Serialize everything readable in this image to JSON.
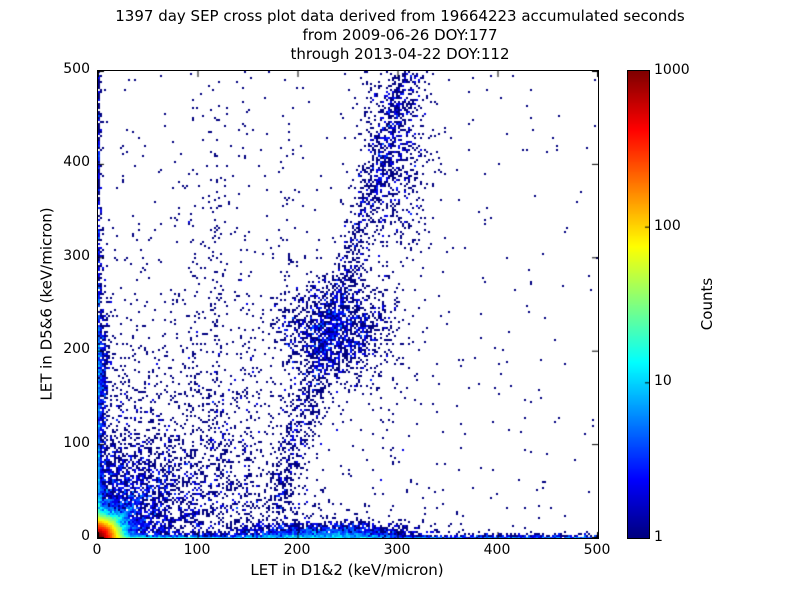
{
  "figure": {
    "title_line1": "1397 day SEP cross plot data derived from 19664223 accumulated seconds",
    "title_line2": "from 2009-06-26 DOY:177",
    "title_line3": "through 2013-04-22 DOY:112",
    "background": "#ffffff"
  },
  "chart_data": {
    "type": "heatmap",
    "subtype": "2D histogram cross plot, log10 color scale, jet colormap, white background for empty bins",
    "title": "1397 day SEP cross plot data derived from 19664223 accumulated seconds\nfrom 2009-06-26 DOY:177\nthrough 2013-04-22 DOY:112",
    "xlabel": "LET in D1&2 (keV/micron)",
    "ylabel": "LET in D5&6 (keV/micron)",
    "xlim": [
      0,
      500
    ],
    "ylim": [
      0,
      500
    ],
    "xticks": [
      0,
      100,
      200,
      300,
      400,
      500
    ],
    "yticks": [
      0,
      100,
      200,
      300,
      400,
      500
    ],
    "grid": false,
    "tick_style": "inward ticks on all four sides",
    "colorbar": {
      "label": "Counts",
      "scale": "log",
      "lim": [
        1,
        1000
      ],
      "ticks": [
        1,
        10,
        100,
        1000
      ],
      "colormap": "jet",
      "position": "right"
    },
    "bin_size_units": 2,
    "features": [
      "intense hot spot (counts up to ~1000, dark red) at origin within ~10 keV/micron radius",
      "red-orange-yellow-green-cyan rings grading outward from origin to ~30 units",
      "dense blue fan with radial streaks filling lower-left region out to ~100 units",
      "bright cyan/green 45-degree diagonal streak from origin to ~(20,20)",
      "dense band of counts hugging the x-axis (y~0-5) across full width, with a mound near x~200-260",
      "dense band of counts hugging the y-axis (x~0-4) up to high y values",
      "loose diagonal chain of single counts from ~(180,60) up to ~(305,500) with denser knot near (237,224)",
      "sparse isolated single-count (dark navy) bins scattered over the whole plane, thinning toward upper right"
    ],
    "density_model": {
      "seed": 42,
      "poisson_sampling": true,
      "components": [
        {
          "type": "radial",
          "amp": 1200,
          "scale": 9,
          "power": 1.4
        },
        {
          "type": "radial",
          "amp": 4,
          "scale": 28,
          "power": 1
        },
        {
          "type": "radial",
          "amp": 1.5,
          "scale": 55,
          "power": 1
        },
        {
          "type": "radial",
          "amp": 0.12,
          "scale": 130,
          "power": 1
        },
        {
          "type": "const",
          "amp": 0.004
        },
        {
          "type": "xband",
          "amp": 18,
          "yscale": 2.2,
          "ypower": 1.3,
          "floor": 0.2,
          "xdecay": 90
        },
        {
          "type": "yband",
          "amp": 18,
          "xscale": 1.8,
          "xpower": 1.3,
          "floor": 0.12,
          "ydecay": 90
        },
        {
          "type": "blob",
          "amp": 6,
          "cx": 228,
          "cy": 0,
          "sx": 45,
          "sy": 8
        },
        {
          "type": "blob",
          "amp": 1.4,
          "cx": 237,
          "cy": 224,
          "sx": 28,
          "sy": 28
        },
        {
          "type": "blob",
          "amp": 0.5,
          "cx": 297,
          "cy": 420,
          "sx": 18,
          "sy": 60
        },
        {
          "type": "blob",
          "amp": 2.0,
          "cx": 2,
          "cy": 180,
          "sx": 4,
          "sy": 45
        },
        {
          "type": "ray",
          "angle": 45,
          "amp": 35,
          "width": 2.2,
          "rho": 16
        },
        {
          "type": "ray",
          "angle": 45,
          "amp": 2.5,
          "width": 4,
          "rho": 45
        },
        {
          "type": "ray",
          "angle": 14,
          "amp": 2.0,
          "width": 3,
          "rho": 40
        },
        {
          "type": "ray",
          "angle": 24,
          "amp": 1.8,
          "width": 3,
          "rho": 45
        },
        {
          "type": "ray",
          "angle": 35,
          "amp": 1.6,
          "width": 3,
          "rho": 50
        },
        {
          "type": "ray",
          "angle": 55,
          "amp": 2.2,
          "width": 3,
          "rho": 50
        },
        {
          "type": "ray",
          "angle": 64,
          "amp": 1.8,
          "width": 3,
          "rho": 45
        },
        {
          "type": "ray",
          "angle": 73,
          "amp": 2.0,
          "width": 3,
          "rho": 55
        },
        {
          "type": "ray",
          "angle": 81,
          "amp": 1.6,
          "width": 2.5,
          "rho": 60
        },
        {
          "type": "ray",
          "angle": 87,
          "amp": 2.2,
          "width": 2,
          "rho": 70
        },
        {
          "type": "column",
          "amp": 0.25,
          "cx": 95,
          "w": 6,
          "ydecay": 220
        },
        {
          "type": "column",
          "amp": 0.22,
          "cx": 118,
          "w": 7,
          "ydecay": 260
        },
        {
          "type": "column",
          "amp": 0.18,
          "cx": 148,
          "w": 7,
          "ydecay": 260
        },
        {
          "type": "column",
          "amp": 0.18,
          "cx": 190,
          "w": 8,
          "ydecay": 240
        },
        {
          "type": "diagband",
          "amp": 0.45,
          "x0": 170,
          "slope": 0.28,
          "w": 13,
          "ymin": 30
        }
      ]
    }
  },
  "colors": {
    "frame": "#000000",
    "text": "#000000",
    "single_count_bin": "#00007f",
    "max_count_bin": "#7f0000",
    "empty_bin": "#ffffff"
  }
}
